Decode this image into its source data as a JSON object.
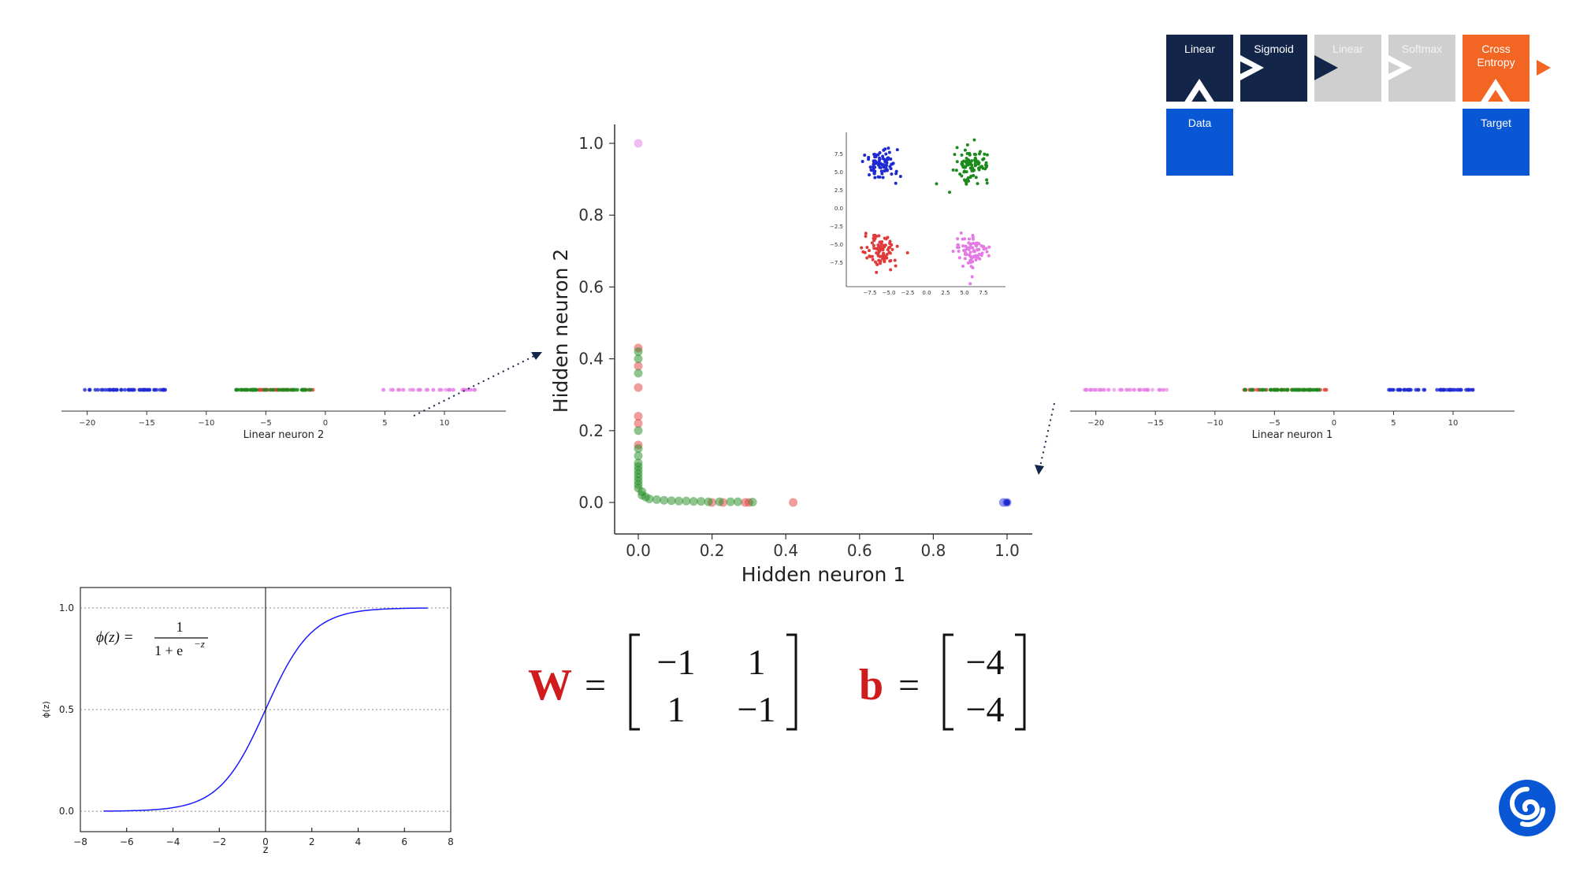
{
  "pipeline": {
    "blocks": [
      {
        "label": "Linear",
        "state": "active",
        "color": "#14254a"
      },
      {
        "label": "Sigmoid",
        "state": "active",
        "color": "#14254a"
      },
      {
        "label": "Linear",
        "state": "inactive",
        "color": "#cfcfcf"
      },
      {
        "label": "Softmax",
        "state": "inactive",
        "color": "#cfcfcf"
      },
      {
        "label": "Cross\nEntropy",
        "state": "loss",
        "color": "#f26522"
      }
    ],
    "inputs": [
      {
        "label": "Data",
        "color": "#0a57d6"
      },
      {
        "label": "Target",
        "color": "#0a57d6"
      }
    ]
  },
  "colors": {
    "blue": "#1f2bd1",
    "green": "#1e8a1e",
    "red": "#e03a3a",
    "violet": "#e47ae4",
    "navy": "#14254a",
    "orange": "#f26522",
    "accent_blue": "#0a57d6",
    "math_red": "#d01c1c"
  },
  "left_strip": {
    "xlabel": "Linear neuron 2",
    "ticks": [
      "−20",
      "−15",
      "−10",
      "−5",
      "0",
      "5",
      "10"
    ]
  },
  "right_strip": {
    "xlabel": "Linear neuron 1",
    "ticks": [
      "−20",
      "−15",
      "−10",
      "−5",
      "0",
      "5",
      "10"
    ]
  },
  "chart_data": [
    {
      "type": "scatter",
      "name": "hidden_space",
      "xlabel": "Hidden neuron 1",
      "ylabel": "Hidden neuron 2",
      "xlim": [
        0,
        1
      ],
      "ylim": [
        0,
        1
      ],
      "xticks": [
        "0.0",
        "0.2",
        "0.4",
        "0.6",
        "0.8",
        "1.0"
      ],
      "yticks": [
        "0.0",
        "0.2",
        "0.4",
        "0.6",
        "0.8",
        "1.0"
      ],
      "series": [
        {
          "color": "violet",
          "points": [
            [
              0.0,
              1.0
            ]
          ]
        },
        {
          "color": "blue",
          "points": [
            [
              1.0,
              0.0
            ],
            [
              0.99,
              0.0
            ]
          ]
        },
        {
          "color": "red",
          "points": [
            [
              0.0,
              0.43
            ],
            [
              0.0,
              0.38
            ],
            [
              0.0,
              0.32
            ],
            [
              0.0,
              0.24
            ],
            [
              0.0,
              0.22
            ],
            [
              0.0,
              0.16
            ],
            [
              0.42,
              0.0
            ],
            [
              0.3,
              0.0
            ],
            [
              0.29,
              0.0
            ],
            [
              0.23,
              0.0
            ],
            [
              0.2,
              0.0
            ]
          ]
        },
        {
          "color": "green",
          "points": [
            [
              0.0,
              0.42
            ],
            [
              0.0,
              0.4
            ],
            [
              0.0,
              0.36
            ],
            [
              0.0,
              0.2
            ],
            [
              0.0,
              0.15
            ],
            [
              0.0,
              0.13
            ],
            [
              0.0,
              0.11
            ],
            [
              0.0,
              0.1
            ],
            [
              0.0,
              0.09
            ],
            [
              0.0,
              0.08
            ],
            [
              0.0,
              0.07
            ],
            [
              0.0,
              0.06
            ],
            [
              0.0,
              0.05
            ],
            [
              0.0,
              0.04
            ],
            [
              0.01,
              0.03
            ],
            [
              0.01,
              0.02
            ],
            [
              0.02,
              0.015
            ],
            [
              0.03,
              0.01
            ],
            [
              0.05,
              0.008
            ],
            [
              0.07,
              0.006
            ],
            [
              0.09,
              0.005
            ],
            [
              0.11,
              0.004
            ],
            [
              0.13,
              0.004
            ],
            [
              0.15,
              0.003
            ],
            [
              0.17,
              0.003
            ],
            [
              0.19,
              0.002
            ],
            [
              0.22,
              0.002
            ],
            [
              0.25,
              0.002
            ],
            [
              0.27,
              0.002
            ],
            [
              0.31,
              0.001
            ]
          ]
        }
      ]
    },
    {
      "type": "scatter",
      "name": "input_data",
      "xticks": [
        "−7.5",
        "−5.0",
        "−2.5",
        "0.0",
        "2.5",
        "5.0",
        "7.5"
      ],
      "yticks": [
        "7.5",
        "5.0",
        "2.5",
        "0.0",
        "−2.5",
        "−5.0",
        "−7.5"
      ],
      "xlim": [
        -10,
        10
      ],
      "ylim": [
        -10,
        10
      ],
      "clusters": [
        {
          "color": "blue",
          "center": [
            -6,
            6
          ],
          "spread": 1.1
        },
        {
          "color": "green",
          "center": [
            6,
            6
          ],
          "spread": 1.1
        },
        {
          "color": "red",
          "center": [
            -6,
            -6
          ],
          "spread": 1.1
        },
        {
          "color": "violet",
          "center": [
            6,
            -6
          ],
          "spread": 1.1
        }
      ]
    },
    {
      "type": "line",
      "name": "sigmoid",
      "xlabel": "z",
      "ylabel": "ϕ(z)",
      "xlim": [
        -8,
        8
      ],
      "ylim": [
        -0.1,
        1.1
      ],
      "xticks": [
        "−8",
        "−6",
        "−4",
        "−2",
        "0",
        "2",
        "4",
        "6",
        "8"
      ],
      "yticks": [
        "0.0",
        "0.5",
        "1.0"
      ],
      "x_range": [
        -7,
        7
      ],
      "formula": "ϕ(z) = 1 / (1 + e^−z)"
    }
  ],
  "equations": {
    "W_symbol": "W",
    "b_symbol": "b",
    "equals": "=",
    "W_matrix": [
      [
        "−1",
        "1"
      ],
      [
        "1",
        "−1"
      ]
    ],
    "b_vector": [
      "−4",
      "−4"
    ],
    "sigmoid_lhs": "ϕ(z) =",
    "sigmoid_num": "1",
    "sigmoid_den": "1 + e",
    "sigmoid_exp": "−z"
  },
  "logo": {
    "name": "deepmind-logo-icon"
  }
}
